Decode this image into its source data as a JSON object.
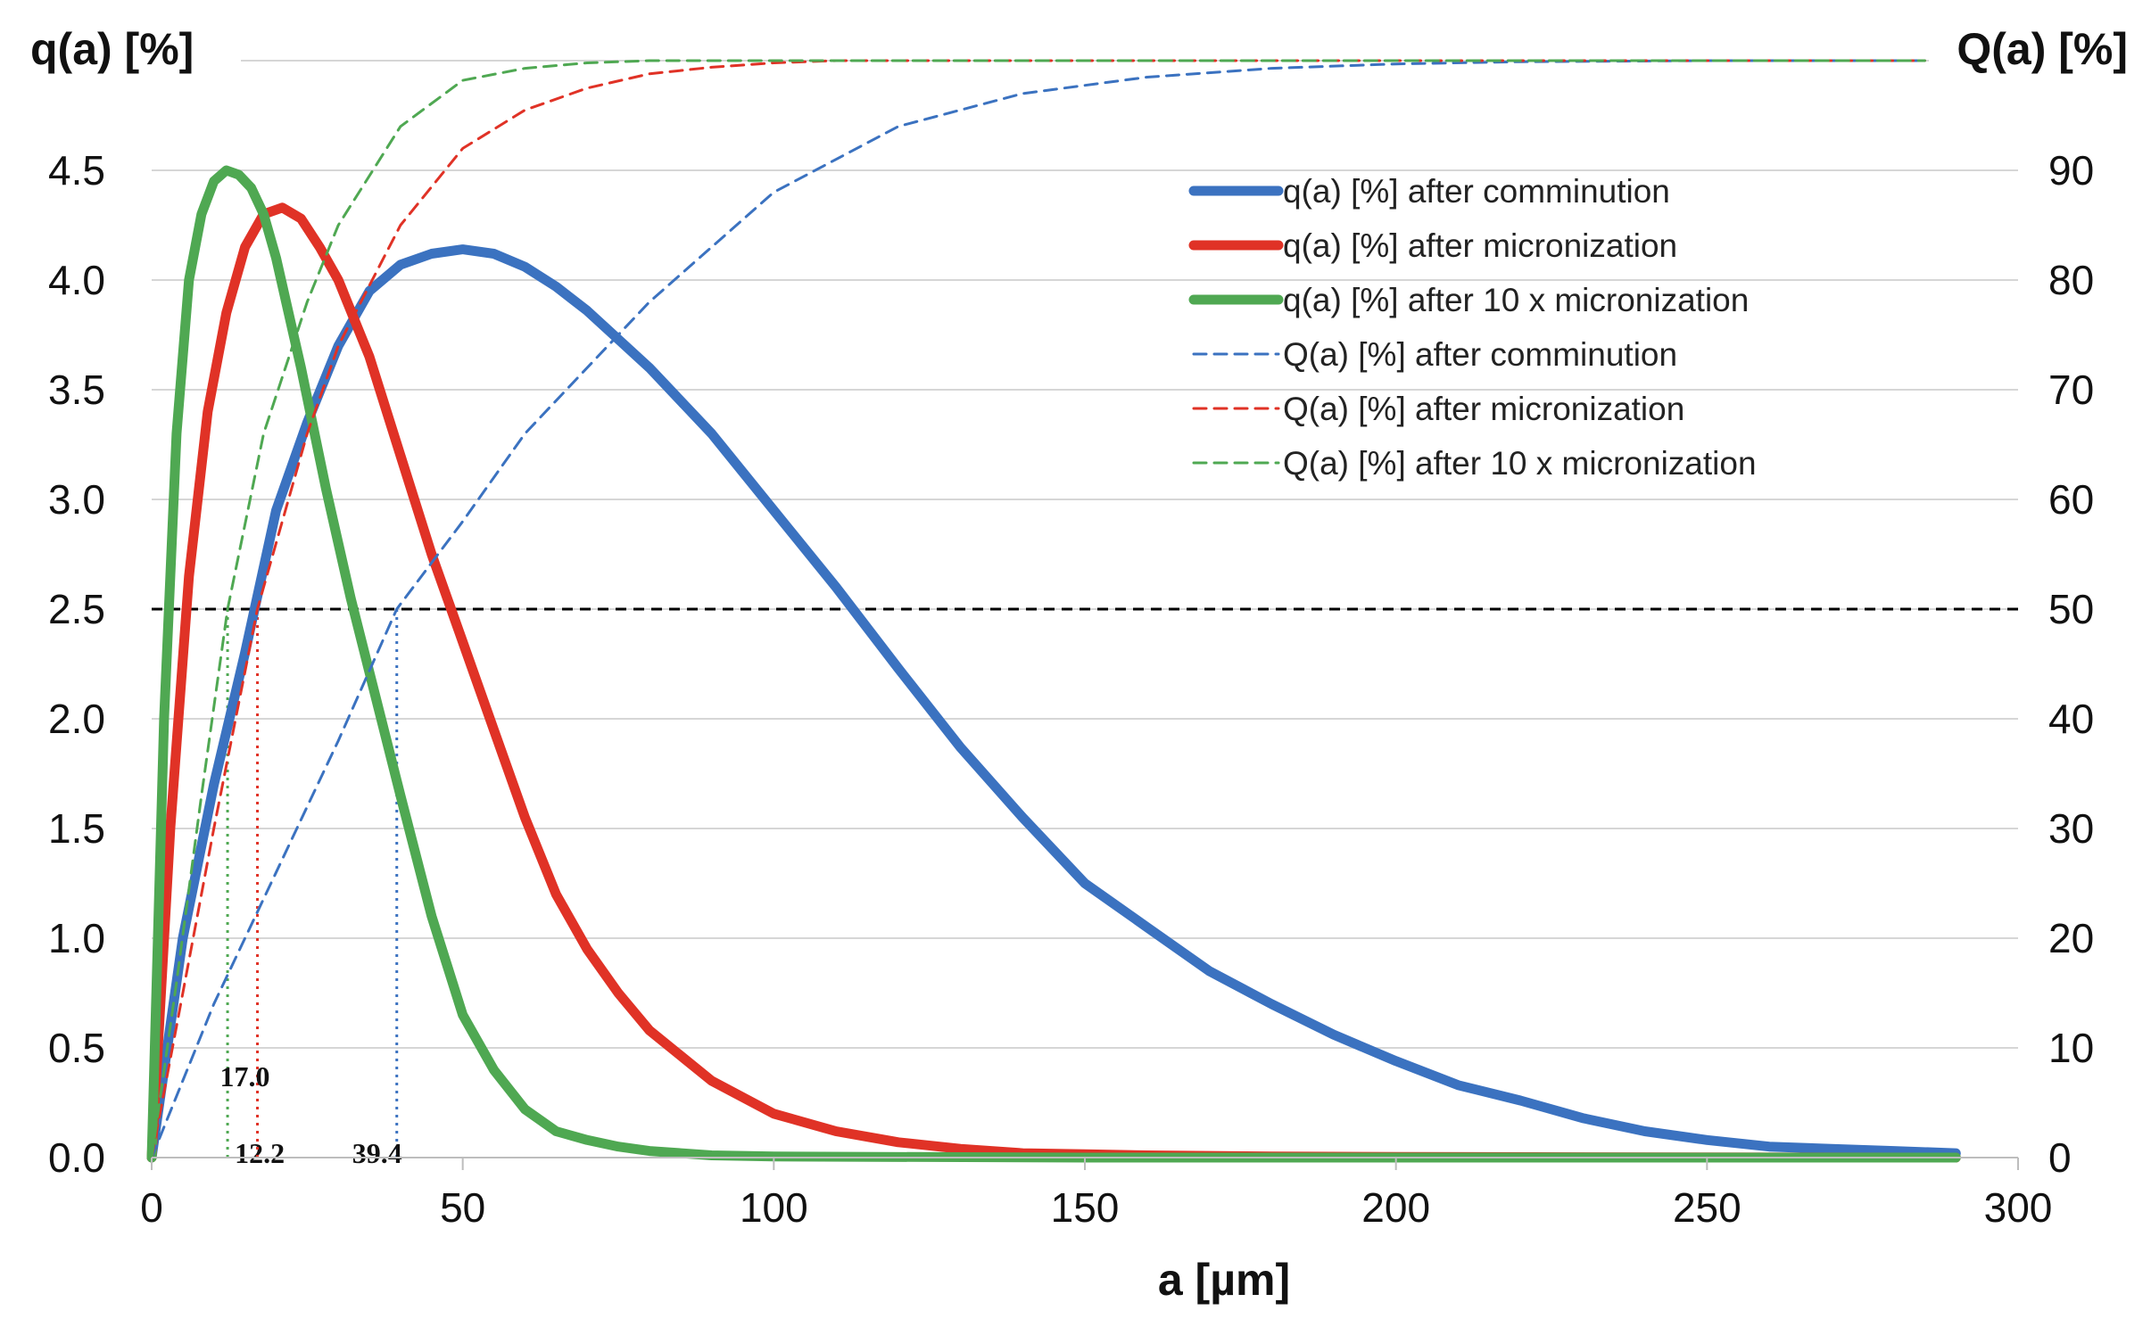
{
  "chart_data": {
    "type": "line",
    "title": "",
    "xlabel": "a [µm]",
    "ylabel_left": "q(a) [%]",
    "ylabel_right": "Q(a) [%]",
    "xlim": [
      0,
      300
    ],
    "ylim_left": [
      0,
      5.0
    ],
    "ylim_right": [
      0,
      100
    ],
    "x_ticks": [
      "0",
      "50",
      "100",
      "150",
      "200",
      "250",
      "300"
    ],
    "y_left_ticks": [
      "0.0",
      "0.5",
      "1.0",
      "1.5",
      "2.0",
      "2.5",
      "3.0",
      "3.5",
      "4.0",
      "4.5"
    ],
    "y_right_ticks": [
      "0",
      "10",
      "20",
      "30",
      "40",
      "50",
      "60",
      "70",
      "80",
      "90"
    ],
    "grid": "horizontal",
    "legend_position": "top-right",
    "reference_line": {
      "axis": "right",
      "value": 50,
      "style": "dashed",
      "color": "#000000"
    },
    "series": [
      {
        "name": "q(a) [%] after comminution",
        "axis": "left",
        "style": "solid",
        "color": "#3b72c0",
        "x": [
          0,
          5,
          10,
          15,
          20,
          25,
          30,
          35,
          40,
          45,
          50,
          55,
          60,
          65,
          70,
          80,
          90,
          100,
          110,
          120,
          130,
          140,
          150,
          160,
          170,
          180,
          190,
          200,
          210,
          220,
          230,
          240,
          250,
          260,
          270,
          280,
          290
        ],
        "y": [
          0.0,
          1.0,
          1.7,
          2.3,
          2.95,
          3.35,
          3.7,
          3.95,
          4.07,
          4.12,
          4.14,
          4.12,
          4.06,
          3.97,
          3.86,
          3.6,
          3.3,
          2.95,
          2.6,
          2.23,
          1.87,
          1.55,
          1.25,
          1.05,
          0.85,
          0.7,
          0.56,
          0.44,
          0.33,
          0.26,
          0.18,
          0.12,
          0.08,
          0.05,
          0.04,
          0.03,
          0.02
        ]
      },
      {
        "name": "q(a) [%] after micronization",
        "axis": "left",
        "style": "solid",
        "color": "#e03226",
        "x": [
          0,
          3,
          6,
          9,
          12,
          15,
          18,
          21,
          24,
          27,
          30,
          35,
          40,
          45,
          50,
          55,
          60,
          65,
          70,
          75,
          80,
          90,
          100,
          110,
          120,
          130,
          140,
          150,
          160,
          180,
          200,
          250,
          290
        ],
        "y": [
          0.0,
          1.5,
          2.65,
          3.4,
          3.85,
          4.15,
          4.3,
          4.33,
          4.28,
          4.15,
          4.0,
          3.65,
          3.2,
          2.75,
          2.35,
          1.95,
          1.55,
          1.2,
          0.95,
          0.75,
          0.58,
          0.35,
          0.2,
          0.12,
          0.07,
          0.04,
          0.02,
          0.015,
          0.01,
          0.005,
          0.003,
          0.001,
          0.0
        ]
      },
      {
        "name": "q(a) [%] after 10 x micronization",
        "axis": "left",
        "style": "solid",
        "color": "#4fa852",
        "x": [
          0,
          2,
          4,
          6,
          8,
          10,
          12,
          14,
          16,
          18,
          20,
          24,
          28,
          32,
          36,
          40,
          45,
          50,
          55,
          60,
          65,
          70,
          75,
          80,
          90,
          100,
          150,
          200,
          290
        ],
        "y": [
          0.0,
          2.0,
          3.3,
          4.0,
          4.3,
          4.45,
          4.5,
          4.48,
          4.42,
          4.3,
          4.1,
          3.6,
          3.05,
          2.55,
          2.1,
          1.65,
          1.1,
          0.65,
          0.4,
          0.22,
          0.12,
          0.08,
          0.05,
          0.03,
          0.01,
          0.005,
          0.0,
          0.0,
          0.0
        ]
      },
      {
        "name": "Q(a) [%] after comminution",
        "axis": "right",
        "style": "dashed",
        "color": "#3b72c0",
        "x": [
          0,
          10,
          20,
          30,
          39.4,
          50,
          60,
          70,
          80,
          90,
          100,
          120,
          140,
          160,
          180,
          200,
          220,
          250,
          285
        ],
        "y": [
          0,
          14,
          26,
          38,
          50,
          58,
          66,
          72,
          78,
          83,
          88,
          94,
          97,
          98.5,
          99.3,
          99.7,
          99.9,
          100,
          100
        ]
      },
      {
        "name": "Q(a) [%] after micronization",
        "axis": "right",
        "style": "dashed",
        "color": "#e03226",
        "x": [
          0,
          5,
          10,
          17,
          25,
          30,
          40,
          50,
          60,
          70,
          80,
          90,
          100,
          110,
          130,
          160,
          200,
          285
        ],
        "y": [
          0,
          15,
          30,
          50,
          66,
          74,
          85,
          92,
          95.5,
          97.5,
          98.8,
          99.4,
          99.8,
          100,
          100,
          100,
          100,
          100
        ]
      },
      {
        "name": "Q(a) [%] after 10 x micronization",
        "axis": "right",
        "style": "dashed",
        "color": "#4fa852",
        "x": [
          0,
          4,
          8,
          12.2,
          18,
          25,
          30,
          40,
          50,
          60,
          70,
          80,
          90,
          110,
          150,
          200,
          285
        ],
        "y": [
          0,
          16,
          33,
          50,
          66,
          78,
          85,
          94,
          98.2,
          99.3,
          99.8,
          100,
          100,
          100,
          100,
          100,
          100
        ]
      }
    ],
    "median_markers": [
      {
        "x": 12.2,
        "label": "12.2",
        "color": "#4fa852"
      },
      {
        "x": 17.0,
        "label": "17.0",
        "color": "#e03226"
      },
      {
        "x": 39.4,
        "label": "39.4",
        "color": "#3b72c0"
      }
    ]
  }
}
